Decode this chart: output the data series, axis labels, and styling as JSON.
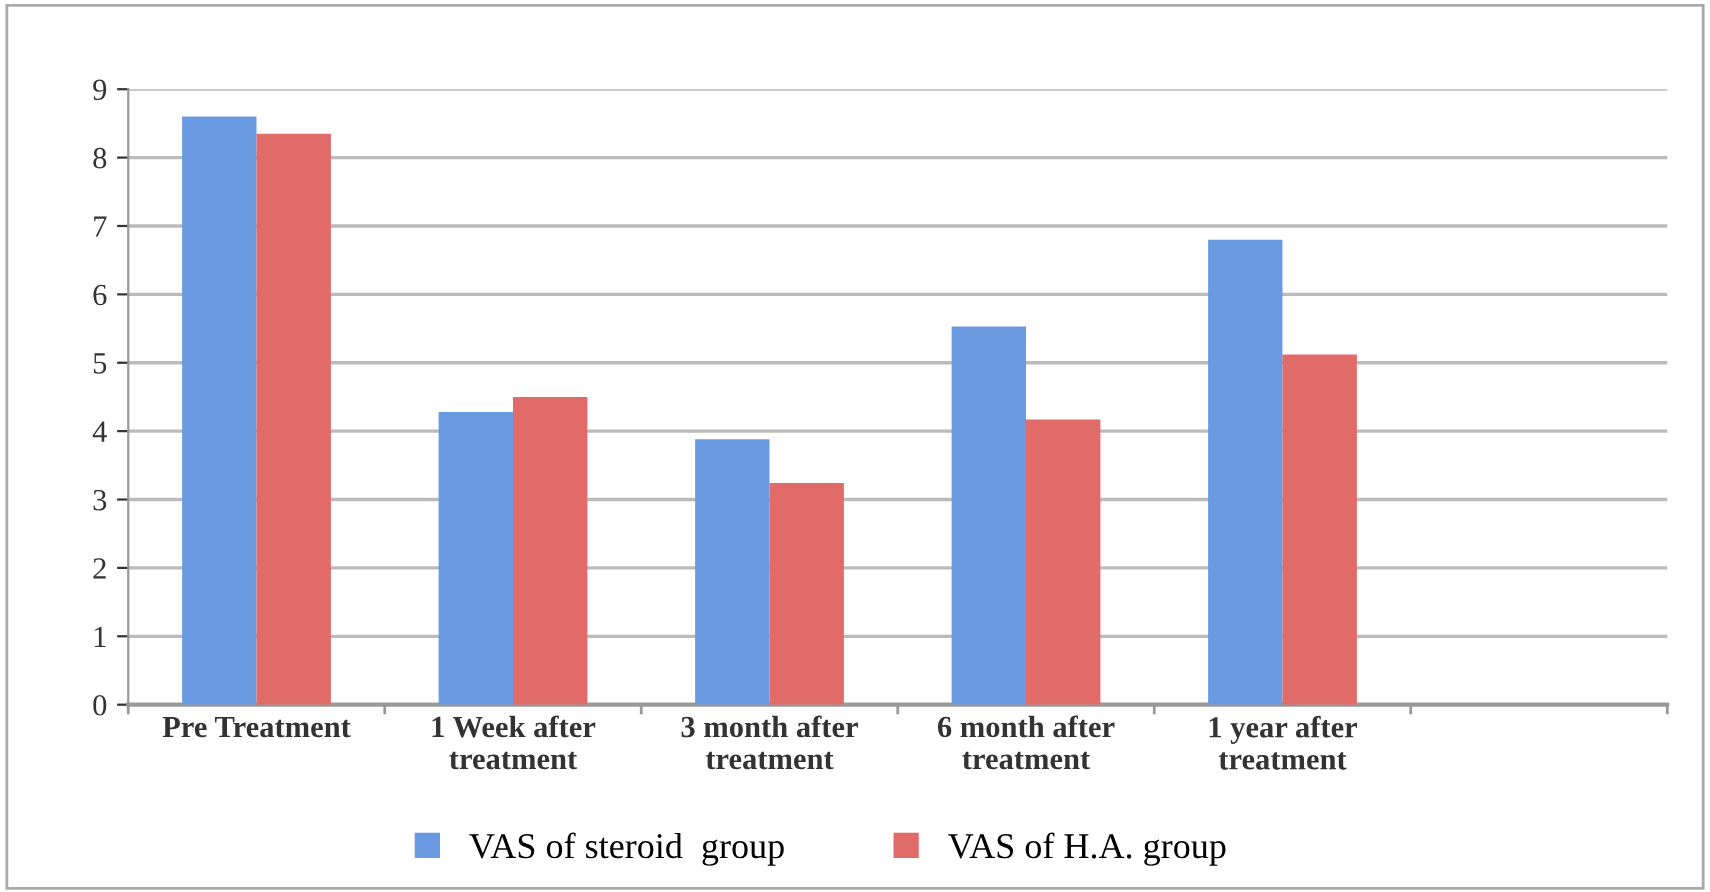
{
  "chart_data": {
    "type": "bar",
    "categories": [
      "Pre Treatment",
      "1 Week after\ntreatment",
      "3 month after\ntreatment",
      "6 month after\ntreatment",
      "1 year after\ntreatment",
      null
    ],
    "series": [
      {
        "name": "VAS of steroid  group",
        "color": "#6a9be2",
        "values": [
          8.6,
          4.28,
          3.88,
          5.53,
          6.8,
          null
        ]
      },
      {
        "name": "VAS of H.A. group",
        "color": "#e06b69",
        "values": [
          8.35,
          4.5,
          3.24,
          4.17,
          5.12,
          null
        ]
      }
    ],
    "ylim": [
      0,
      9
    ],
    "yticks": [
      0,
      1,
      2,
      3,
      4,
      5,
      6,
      7,
      8,
      9
    ],
    "grid": "y",
    "legend": "bottom"
  }
}
